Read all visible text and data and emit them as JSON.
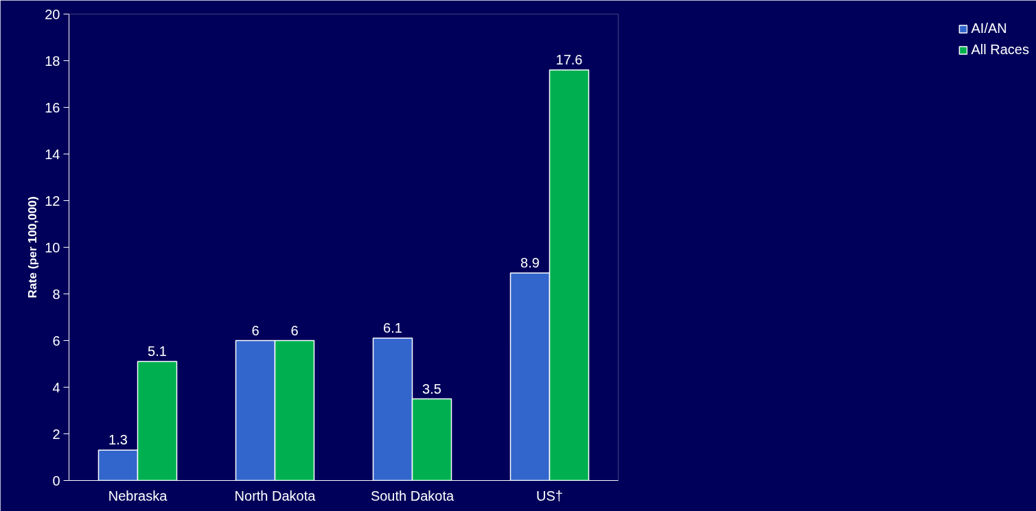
{
  "chart_data": {
    "type": "bar",
    "ylabel": "Rate (per 100,000)",
    "categories": [
      "Nebraska",
      "North Dakota",
      "South Dakota",
      "US†"
    ],
    "series": [
      {
        "name": "AI/AN",
        "color": "#3366cc",
        "values": [
          1.3,
          6,
          6.1,
          8.9
        ]
      },
      {
        "name": "All Races",
        "color": "#00b050",
        "values": [
          5.1,
          6,
          3.5,
          17.6
        ]
      }
    ],
    "ylim": [
      0,
      20
    ],
    "yticks": [
      0,
      2,
      4,
      6,
      8,
      10,
      12,
      14,
      16,
      18,
      20
    ],
    "grid": false,
    "legend": "right",
    "data_labels": true
  }
}
